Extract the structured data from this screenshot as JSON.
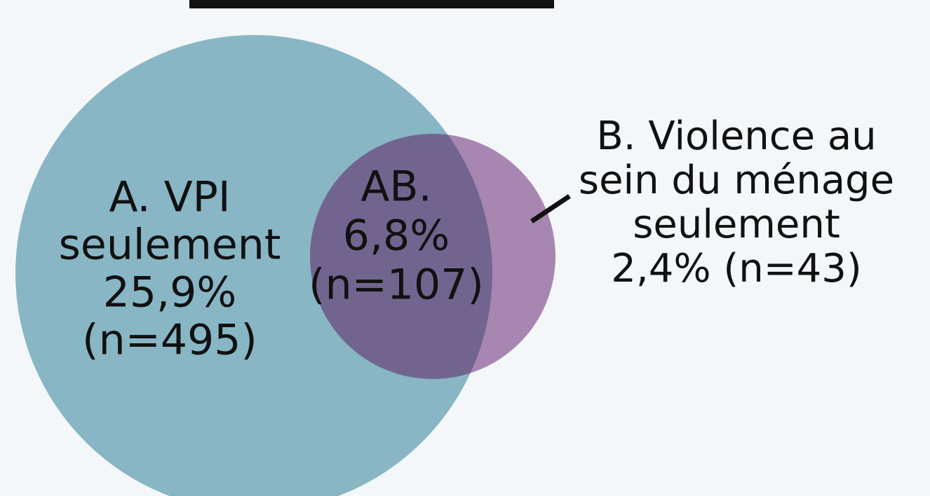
{
  "regions": [
    {
      "lines": [
        "A. VPI",
        "seulement",
        "25,9%",
        "(n=495)"
      ]
    },
    {
      "lines": [
        "AB.",
        "6,8%",
        "(n=107)"
      ]
    },
    {
      "lines": [
        "B. Violence au",
        "sein du ménage",
        "seulement",
        "2,4% (n=43)"
      ]
    }
  ]
}
